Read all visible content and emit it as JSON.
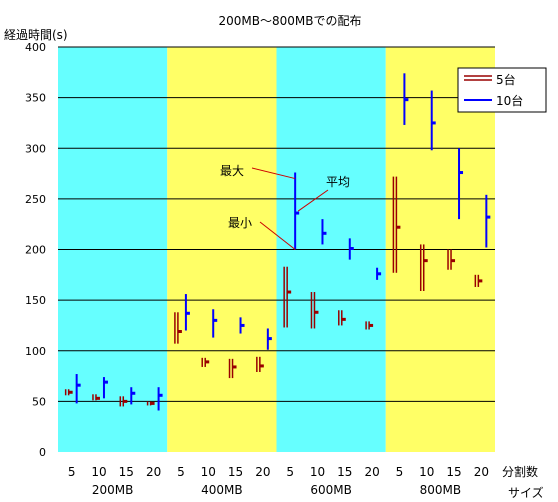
{
  "chart_data": {
    "type": "range",
    "title": "200MB〜800MBでの配布",
    "ylabel": "経過時間(s)",
    "xlabel": "分割数",
    "xlabel2": "サイズ",
    "ylim": [
      0,
      400
    ],
    "yticks": [
      0,
      50,
      100,
      150,
      200,
      250,
      300,
      350,
      400
    ],
    "grid": "horizontal",
    "legend_position": "top-right",
    "split_counts": [
      "5",
      "10",
      "15",
      "20"
    ],
    "groups": [
      {
        "label": "200MB",
        "band_color": "#66FFFF"
      },
      {
        "label": "400MB",
        "band_color": "#FFFF66"
      },
      {
        "label": "600MB",
        "band_color": "#66FFFF"
      },
      {
        "label": "800MB",
        "band_color": "#FFFF66"
      }
    ],
    "series": [
      {
        "name": "5台",
        "color": "#990000",
        "points": [
          {
            "min": 56,
            "max": 62,
            "avg": 59
          },
          {
            "min": 51,
            "max": 57,
            "avg": 53
          },
          {
            "min": 45,
            "max": 55,
            "avg": 50
          },
          {
            "min": 46,
            "max": 50,
            "avg": 48
          },
          {
            "min": 107,
            "max": 138,
            "avg": 119
          },
          {
            "min": 84,
            "max": 93,
            "avg": 89
          },
          {
            "min": 73,
            "max": 92,
            "avg": 84
          },
          {
            "min": 79,
            "max": 94,
            "avg": 85
          },
          {
            "min": 123,
            "max": 183,
            "avg": 158
          },
          {
            "min": 122,
            "max": 158,
            "avg": 138
          },
          {
            "min": 125,
            "max": 140,
            "avg": 131
          },
          {
            "min": 121,
            "max": 129,
            "avg": 125
          },
          {
            "min": 177,
            "max": 272,
            "avg": 222
          },
          {
            "min": 159,
            "max": 205,
            "avg": 189
          },
          {
            "min": 180,
            "max": 200,
            "avg": 189
          },
          {
            "min": 163,
            "max": 175,
            "avg": 169
          }
        ]
      },
      {
        "name": "10台",
        "color": "#0000FF",
        "points": [
          {
            "min": 48,
            "max": 77,
            "avg": 66
          },
          {
            "min": 53,
            "max": 74,
            "avg": 69
          },
          {
            "min": 47,
            "max": 64,
            "avg": 58
          },
          {
            "min": 41,
            "max": 64,
            "avg": 56
          },
          {
            "min": 120,
            "max": 156,
            "avg": 137
          },
          {
            "min": 113,
            "max": 141,
            "avg": 130
          },
          {
            "min": 117,
            "max": 133,
            "avg": 125
          },
          {
            "min": 101,
            "max": 122,
            "avg": 112
          },
          {
            "min": 200,
            "max": 276,
            "avg": 236
          },
          {
            "min": 205,
            "max": 230,
            "avg": 216
          },
          {
            "min": 190,
            "max": 211,
            "avg": 201
          },
          {
            "min": 170,
            "max": 182,
            "avg": 176
          },
          {
            "min": 323,
            "max": 374,
            "avg": 348
          },
          {
            "min": 298,
            "max": 357,
            "avg": 325
          },
          {
            "min": 230,
            "max": 300,
            "avg": 276
          },
          {
            "min": 202,
            "max": 254,
            "avg": 232
          }
        ]
      }
    ],
    "annotations": {
      "max_label": "最大",
      "avg_label": "平均",
      "min_label": "最小"
    }
  }
}
